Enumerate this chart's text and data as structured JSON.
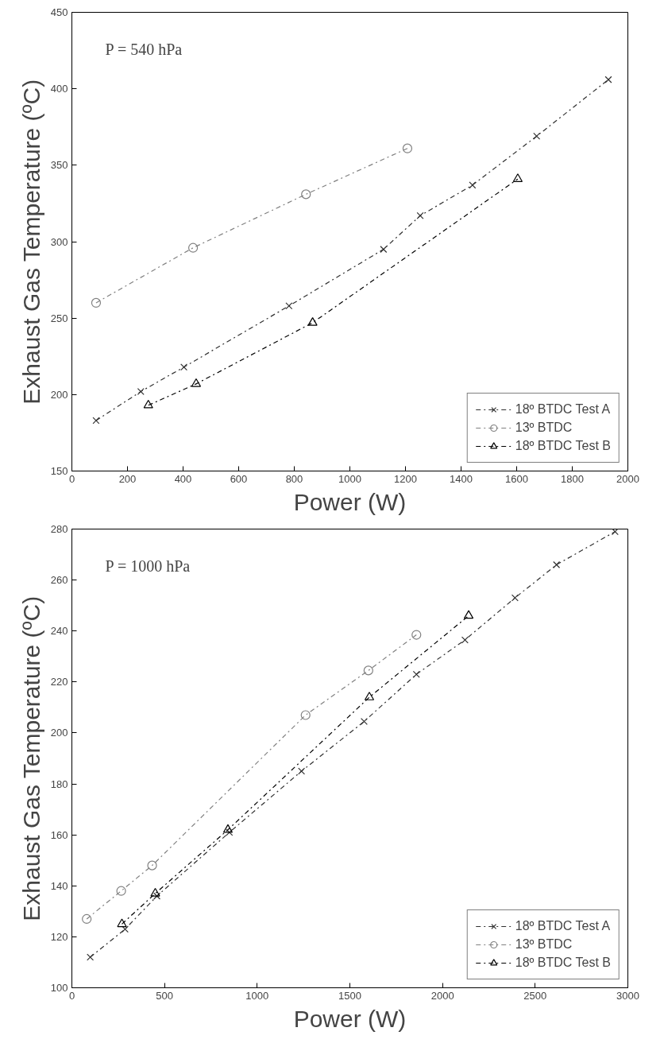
{
  "chart_data": [
    {
      "type": "line",
      "xlabel": "Power (W)",
      "ylabel": "Exhaust Gas Temperature (ºC)",
      "annotations": [
        "P = 540 hPa"
      ],
      "xlim": [
        0,
        2000
      ],
      "xticks": [
        0,
        200,
        400,
        600,
        800,
        1000,
        1200,
        1400,
        1600,
        1800,
        2000
      ],
      "ylim": [
        150,
        450
      ],
      "yticks": [
        150,
        200,
        250,
        300,
        350,
        400,
        450
      ],
      "grid": false,
      "legend": "bottom right",
      "line_style": "dashdot",
      "series": [
        {
          "name": "18º BTDC Test A",
          "color": "#303030",
          "marker": "cross",
          "x": [
            87,
            248,
            403,
            781,
            1121,
            1253,
            1441,
            1672,
            1930
          ],
          "values": [
            183,
            202,
            218,
            258,
            295,
            317,
            337,
            369,
            406
          ]
        },
        {
          "name": "13º BTDC",
          "color": "#808080",
          "marker": "circle",
          "x": [
            87,
            436,
            842,
            1207
          ],
          "values": [
            260,
            296,
            331,
            361
          ]
        },
        {
          "name": "18º BTDC Test B",
          "color": "#000000",
          "marker": "triangle",
          "x": [
            275,
            447,
            866,
            1604
          ],
          "values": [
            193,
            207,
            247,
            341
          ]
        }
      ]
    },
    {
      "type": "line",
      "xlabel": "Power (W)",
      "ylabel": "Exhaust Gas Temperature (ºC)",
      "annotations": [
        "P = 1000 hPa"
      ],
      "xlim": [
        0,
        3000
      ],
      "xticks": [
        0,
        500,
        1000,
        1500,
        2000,
        2500,
        3000
      ],
      "ylim": [
        100,
        280
      ],
      "yticks": [
        100,
        120,
        140,
        160,
        180,
        200,
        220,
        240,
        260,
        280
      ],
      "grid": false,
      "legend": "bottom right",
      "line_style": "dashdot",
      "series": [
        {
          "name": "18º BTDC Test A",
          "color": "#303030",
          "marker": "cross",
          "x": [
            99,
            287,
            459,
            850,
            1239,
            1577,
            1859,
            2121,
            2391,
            2615,
            2931
          ],
          "values": [
            112,
            123,
            136,
            161,
            185,
            204.5,
            223,
            236.5,
            253,
            266,
            279
          ]
        },
        {
          "name": "13º BTDC",
          "color": "#808080",
          "marker": "circle",
          "x": [
            80,
            266,
            433,
            1261,
            1600,
            1859
          ],
          "values": [
            127,
            138,
            148,
            207,
            224.5,
            238.5
          ]
        },
        {
          "name": "18º BTDC Test B",
          "color": "#000000",
          "marker": "triangle",
          "x": [
            270,
            450,
            842,
            1605,
            2141
          ],
          "values": [
            125,
            137,
            162,
            214,
            246
          ]
        }
      ]
    }
  ]
}
